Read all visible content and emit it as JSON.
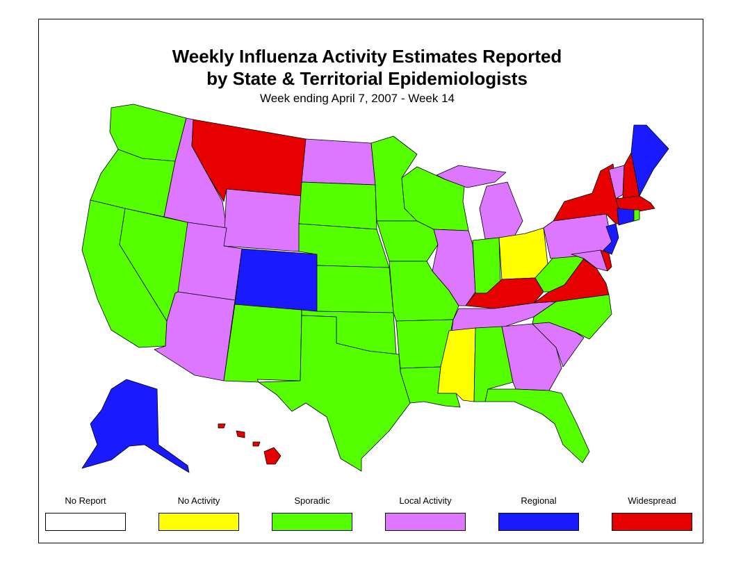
{
  "title_line1": "Weekly Influenza Activity Estimates Reported",
  "title_line2": "by State & Territorial Epidemiologists",
  "subtitle": "Week ending April 7, 2007 - Week 14",
  "legend": [
    {
      "label": "No Report",
      "level": "no_report",
      "color": "#ffffff"
    },
    {
      "label": "No Activity",
      "level": "no_activity",
      "color": "#ffff00"
    },
    {
      "label": "Sporadic",
      "level": "sporadic",
      "color": "#55ff00"
    },
    {
      "label": "Local Activity",
      "level": "local",
      "color": "#dd77ff"
    },
    {
      "label": "Regional",
      "level": "regional",
      "color": "#1a1aff"
    },
    {
      "label": "Widespread",
      "level": "widespread",
      "color": "#e60000"
    }
  ],
  "states": [
    {
      "id": "WA",
      "level": "sporadic"
    },
    {
      "id": "OR",
      "level": "sporadic"
    },
    {
      "id": "CA",
      "level": "sporadic"
    },
    {
      "id": "NV",
      "level": "sporadic"
    },
    {
      "id": "ID",
      "level": "local"
    },
    {
      "id": "MT",
      "level": "widespread"
    },
    {
      "id": "WY",
      "level": "local"
    },
    {
      "id": "UT",
      "level": "local"
    },
    {
      "id": "AZ",
      "level": "local"
    },
    {
      "id": "CO",
      "level": "regional"
    },
    {
      "id": "NM",
      "level": "sporadic"
    },
    {
      "id": "ND",
      "level": "local"
    },
    {
      "id": "SD",
      "level": "sporadic"
    },
    {
      "id": "NE",
      "level": "sporadic"
    },
    {
      "id": "KS",
      "level": "sporadic"
    },
    {
      "id": "OK",
      "level": "sporadic"
    },
    {
      "id": "TX",
      "level": "sporadic"
    },
    {
      "id": "MN",
      "level": "sporadic"
    },
    {
      "id": "IA",
      "level": "sporadic"
    },
    {
      "id": "MO",
      "level": "sporadic"
    },
    {
      "id": "AR",
      "level": "sporadic"
    },
    {
      "id": "LA",
      "level": "sporadic"
    },
    {
      "id": "WI",
      "level": "sporadic"
    },
    {
      "id": "IL",
      "level": "local"
    },
    {
      "id": "MI",
      "level": "local"
    },
    {
      "id": "IN",
      "level": "sporadic"
    },
    {
      "id": "OH",
      "level": "no_activity"
    },
    {
      "id": "KY",
      "level": "widespread"
    },
    {
      "id": "TN",
      "level": "local"
    },
    {
      "id": "MS",
      "level": "no_activity"
    },
    {
      "id": "AL",
      "level": "sporadic"
    },
    {
      "id": "GA",
      "level": "local"
    },
    {
      "id": "FL",
      "level": "sporadic"
    },
    {
      "id": "SC",
      "level": "local"
    },
    {
      "id": "NC",
      "level": "sporadic"
    },
    {
      "id": "VA",
      "level": "widespread"
    },
    {
      "id": "WV",
      "level": "sporadic"
    },
    {
      "id": "PA",
      "level": "local"
    },
    {
      "id": "NY",
      "level": "widespread"
    },
    {
      "id": "VT",
      "level": "local"
    },
    {
      "id": "NH",
      "level": "widespread"
    },
    {
      "id": "ME",
      "level": "regional"
    },
    {
      "id": "MA",
      "level": "widespread"
    },
    {
      "id": "RI",
      "level": "sporadic"
    },
    {
      "id": "CT",
      "level": "regional"
    },
    {
      "id": "NJ",
      "level": "regional"
    },
    {
      "id": "DE",
      "level": "widespread"
    },
    {
      "id": "MD",
      "level": "local"
    },
    {
      "id": "AK",
      "level": "regional"
    },
    {
      "id": "HI",
      "level": "widespread"
    }
  ]
}
